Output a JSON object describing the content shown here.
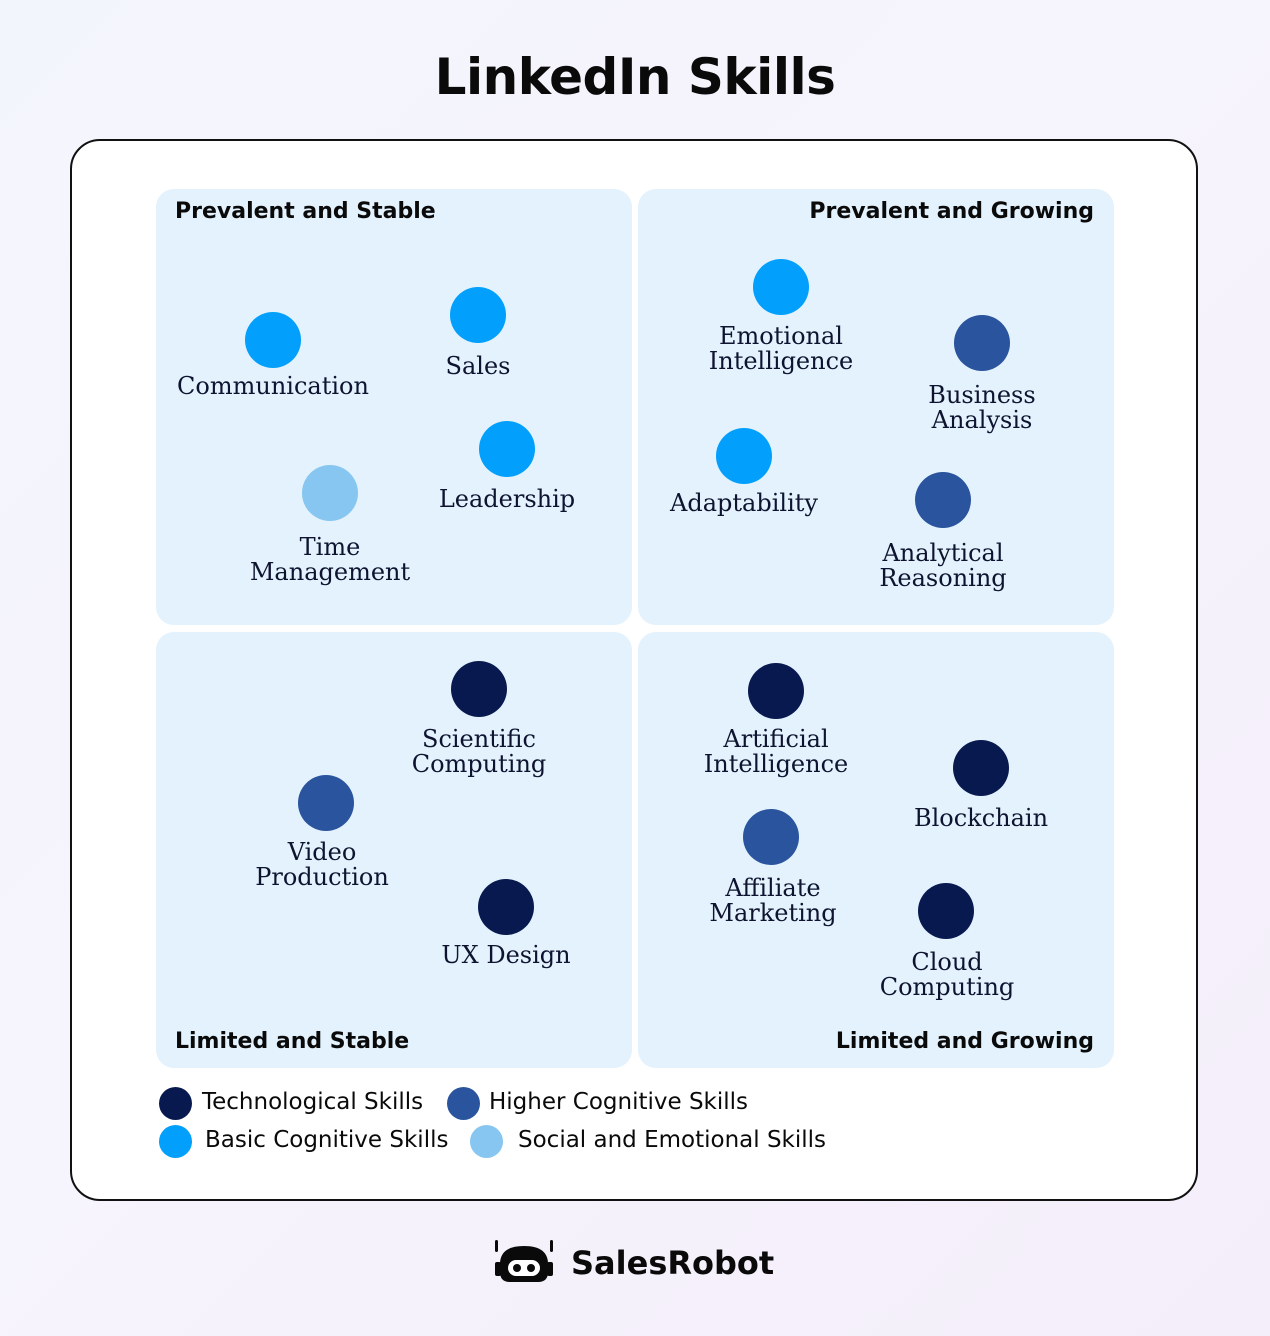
{
  "title": "LinkedIn Skills",
  "quadrants": {
    "prevalent_stable": "Prevalent and Stable",
    "prevalent_growing": "Prevalent and Growing",
    "limited_stable": "Limited and Stable",
    "limited_growing": "Limited and Growing"
  },
  "colors": {
    "technological": "#08194f",
    "higher_cognitive": "#2a549e",
    "basic_cognitive": "#02a0fc",
    "social_emotional": "#87c6f0",
    "quadrant_background": "#e3f2fd"
  },
  "skills": {
    "communication": "Communication",
    "sales": "Sales",
    "leadership": "Leadership",
    "time_management": "Time\nManagement",
    "emotional_intelligence": "Emotional\nIntelligence",
    "business_analysis": "Business\nAnalysis",
    "adaptability": "Adaptability",
    "analytical_reasoning": "Analytical\nReasoning",
    "scientific_computing": "Scientific\nComputing",
    "video_production": "Video\nProduction",
    "ux_design": "UX Design",
    "artificial_intelligence": "Artificial\nIntelligence",
    "blockchain": "Blockchain",
    "affiliate_marketing": "Affiliate\nMarketing",
    "cloud_computing": "Cloud\nComputing"
  },
  "legend": {
    "technological": "Technological Skills",
    "higher_cognitive": "Higher Cognitive Skills",
    "basic_cognitive": "Basic Cognitive Skills",
    "social_emotional": "Social and Emotional Skills"
  },
  "brand": {
    "name": "SalesRobot",
    "logo_icon": "robot-head-icon"
  }
}
